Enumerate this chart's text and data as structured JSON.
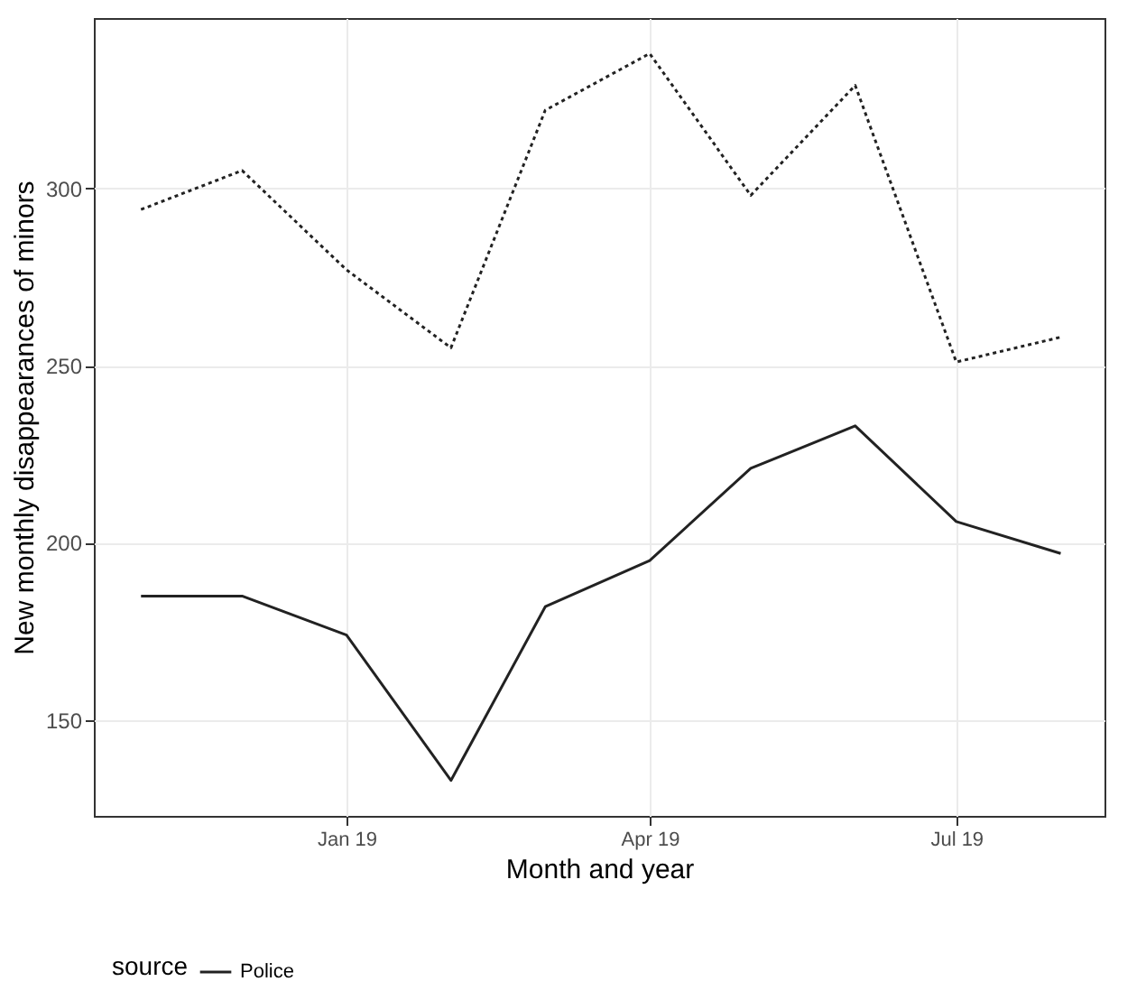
{
  "chart_data": {
    "type": "line",
    "xlabel": "Month and year",
    "ylabel": "New monthly disappearances of minors",
    "legend_title": "source",
    "x": [
      "2018-11",
      "2018-12",
      "2019-01",
      "2019-02",
      "2019-03",
      "2019-04",
      "2019-05",
      "2019-06",
      "2019-07",
      "2019-08"
    ],
    "series": [
      {
        "name": "Police",
        "color": "#222222",
        "line_style": "solid",
        "values": [
          185,
          185,
          174,
          133,
          182,
          195,
          221,
          233,
          206,
          197
        ]
      },
      {
        "color": "#222222",
        "line_style": "dotted",
        "values": [
          294,
          305,
          277,
          255,
          322,
          338,
          298,
          329,
          251,
          258
        ]
      }
    ],
    "xlim": [
      "2018-10-18",
      "2019-08-14"
    ],
    "ylim": [
      123,
      348
    ],
    "xticks": [
      {
        "value": "2019-01",
        "label": "Jan 19"
      },
      {
        "value": "2019-04",
        "label": "Apr 19"
      },
      {
        "value": "2019-07",
        "label": "Jul 19"
      }
    ],
    "yticks": [
      150,
      200,
      250,
      300
    ],
    "grid": true,
    "legend": "bottom"
  }
}
